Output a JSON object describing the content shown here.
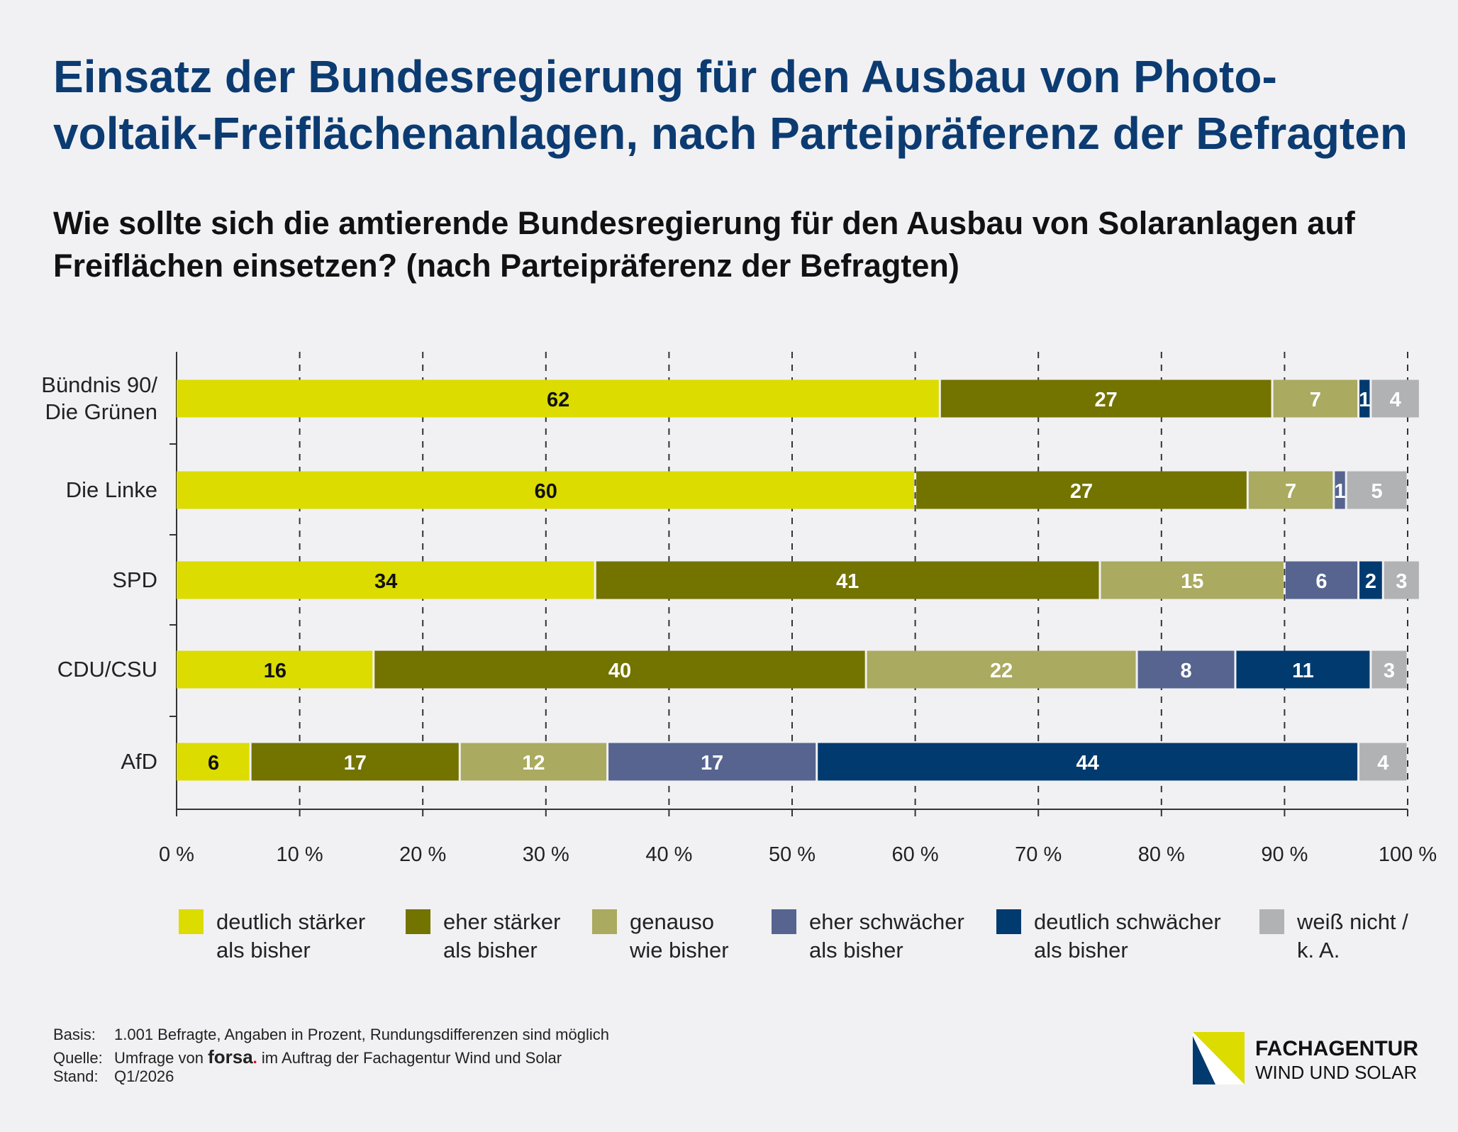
{
  "title": [
    "Einsatz der Bundesregierung für den Ausbau von Photo-",
    "voltaik-Freiflächenanlagen, nach Parteipräferenz der Befragten"
  ],
  "subtitle": [
    "Wie sollte sich die amtierende Bundesregierung für den Ausbau von Solaranlagen auf",
    "Freiflächen einsetzen? (nach Parteipräferenz der Befragten)"
  ],
  "chart_data": {
    "type": "bar",
    "orientation": "horizontal",
    "stacked": true,
    "categories": [
      [
        "Bündnis 90/",
        "Die Grünen"
      ],
      [
        "Die Linke"
      ],
      [
        "SPD"
      ],
      [
        "CDU/CSU"
      ],
      [
        "AfD"
      ]
    ],
    "series": [
      {
        "name": "deutlich stärker\nals bisher",
        "color": "#dcdc00",
        "text_color": "#111111",
        "values": [
          62,
          60,
          34,
          16,
          6
        ]
      },
      {
        "name": "eher stärker\nals bisher",
        "color": "#737300",
        "text_color": "#ffffff",
        "values": [
          27,
          27,
          41,
          40,
          17
        ]
      },
      {
        "name": "genauso\nwie bisher",
        "color": "#aaaa60",
        "text_color": "#ffffff",
        "values": [
          7,
          7,
          15,
          22,
          12
        ]
      },
      {
        "name": "eher schwächer\nals bisher",
        "color": "#56648f",
        "text_color": "#ffffff",
        "values": [
          0,
          1,
          6,
          8,
          17
        ]
      },
      {
        "name": "deutlich schwächer\nals bisher",
        "color": "#003a6e",
        "text_color": "#ffffff",
        "values": [
          1,
          0,
          2,
          11,
          44
        ]
      },
      {
        "name": "weiß nicht /\nk. A.",
        "color": "#b1b2b4",
        "text_color": "#ffffff",
        "values": [
          4,
          5,
          3,
          3,
          4
        ]
      }
    ],
    "xlim": [
      0,
      100
    ],
    "xticks": [
      "0 %",
      "10 %",
      "20 %",
      "30 %",
      "40 %",
      "50 %",
      "60 %",
      "70 %",
      "80 %",
      "90 %",
      "100 %"
    ],
    "grid": "vertical dashed",
    "legend": "bottom"
  },
  "footer": {
    "basis_label": "Basis:",
    "basis": "1.001 Befragte, Angaben in Prozent, Rundungsdifferenzen sind möglich",
    "quelle_label": "Quelle:",
    "quelle_pre": "Umfrage von",
    "forsa": "forsa",
    "forsa_dot": ".",
    "quelle_post": "im Auftrag der Fachagentur Wind und Solar",
    "stand_label": "Stand:",
    "stand": "Q1/2026"
  },
  "logo": {
    "line1": "FACHAGENTUR",
    "line2": "WIND UND SOLAR"
  }
}
